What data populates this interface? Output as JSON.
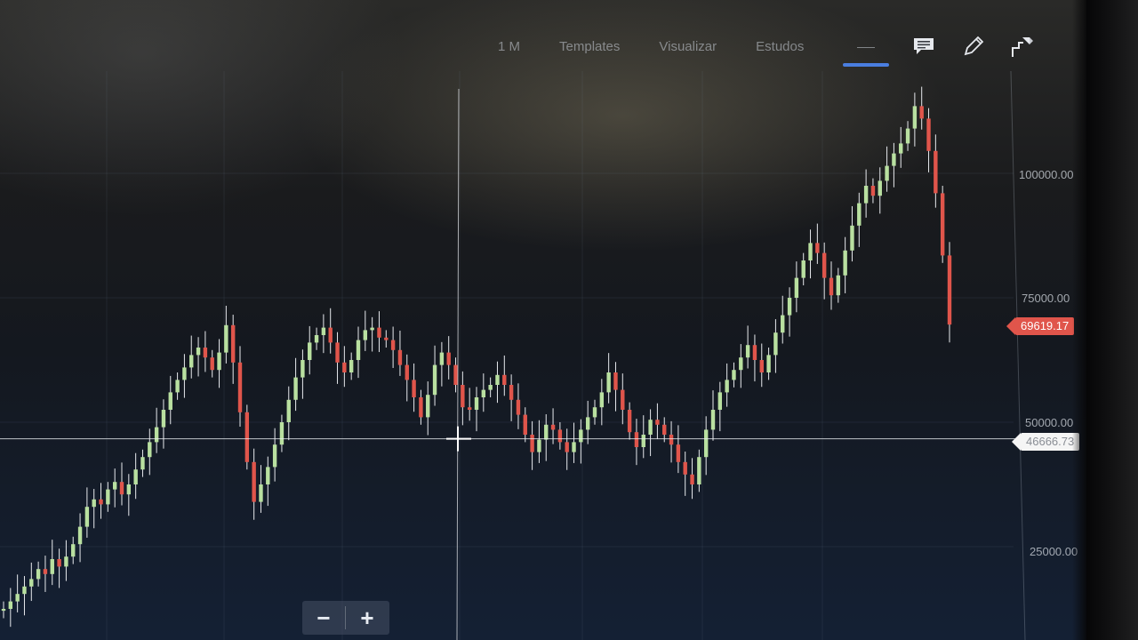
{
  "toolbar": {
    "period": "1 M",
    "templates": "Templates",
    "visualize": "Visualizar",
    "studies": "Estudos",
    "icons": [
      "line-tool-icon",
      "comment-icon",
      "pencil-icon",
      "share-arrow-icon"
    ]
  },
  "axis": {
    "ticks": [
      "100000.00",
      "75000.00",
      "50000.00",
      "25000.00"
    ]
  },
  "price_tags": {
    "last_price": "69619.17",
    "crosshair_price": "46666.73"
  },
  "zoom": {
    "minus": "−",
    "plus": "+"
  },
  "colors": {
    "up": "#b9e0a0",
    "down": "#e0554b",
    "accent": "#4a7ee0"
  },
  "chart_data": {
    "type": "candlestick",
    "ylim": [
      0,
      120000
    ],
    "last": 69619.17,
    "crosshair": 46666.73,
    "closes": [
      12500,
      14000,
      15500,
      17000,
      18500,
      20500,
      19500,
      22500,
      21000,
      23000,
      25500,
      29000,
      33000,
      34500,
      33500,
      36500,
      38000,
      35500,
      37500,
      40500,
      43000,
      46000,
      49000,
      52500,
      56000,
      58500,
      61000,
      63500,
      65000,
      63000,
      60500,
      64000,
      69500,
      62000,
      52000,
      42000,
      34000,
      37500,
      41000,
      45500,
      50000,
      54500,
      59000,
      62500,
      66000,
      67500,
      69000,
      66000,
      62000,
      60000,
      62500,
      66500,
      68500,
      69000,
      67000,
      66500,
      64500,
      61500,
      58500,
      55000,
      51000,
      55500,
      61500,
      64000,
      61500,
      57500,
      53000,
      52500,
      55000,
      56500,
      57500,
      59500,
      57500,
      54500,
      51500,
      47500,
      44000,
      46500,
      49500,
      48500,
      46000,
      44000,
      46000,
      48500,
      51000,
      53000,
      56000,
      60000,
      56500,
      52500,
      48000,
      45000,
      47500,
      50500,
      49500,
      47500,
      45500,
      42000,
      39500,
      37500,
      43000,
      48500,
      52500,
      56000,
      58500,
      60500,
      63000,
      65500,
      62500,
      60000,
      63500,
      68000,
      71500,
      75000,
      79000,
      82500,
      86000,
      84000,
      79000,
      75500,
      79500,
      84500,
      89500,
      94000,
      97500,
      95500,
      98500,
      101500,
      104000,
      106000,
      109000,
      113500,
      111000,
      104500,
      96000,
      83500,
      69619.17
    ]
  }
}
